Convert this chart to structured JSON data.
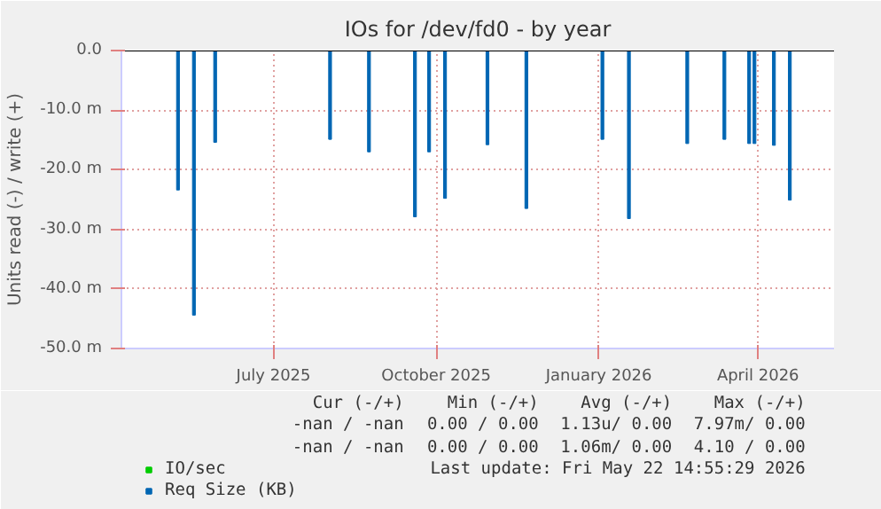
{
  "chart_data": {
    "type": "bar",
    "title": "IOs for /dev/fd0 - by year",
    "ylabel": "Units read (-) / write (+)",
    "x": [
      "2025-05-08",
      "2025-05-17",
      "2025-05-29",
      "2025-08-02",
      "2025-08-24",
      "2025-09-19",
      "2025-09-27",
      "2025-10-06",
      "2025-10-30",
      "2025-11-21",
      "2026-01-03",
      "2026-01-18",
      "2026-02-20",
      "2026-03-13",
      "2026-03-27",
      "2026-03-30",
      "2026-04-10",
      "2026-04-19"
    ],
    "series": [
      {
        "name": "IO/sec",
        "color": "#00cc00",
        "values": [
          null,
          null,
          null,
          null,
          null,
          null,
          null,
          null,
          null,
          null,
          null,
          null,
          null,
          null,
          null,
          null,
          null,
          null
        ]
      },
      {
        "name": "Req Size (KB)",
        "color": "#0066b3",
        "values": [
          -23.4,
          -44.4,
          -15.4,
          -14.9,
          -17.0,
          -27.9,
          -17.0,
          -24.8,
          -15.8,
          -26.5,
          -14.9,
          -28.2,
          -15.6,
          -14.9,
          -15.6,
          -15.6,
          -15.9,
          -25.1
        ]
      }
    ],
    "xlim": [
      "2025-04-06",
      "2026-05-14"
    ],
    "xticks": [
      {
        "value": "2025-07-01",
        "label": "July 2025"
      },
      {
        "value": "2025-10-01",
        "label": "October 2025"
      },
      {
        "value": "2026-01-01",
        "label": "January 2026"
      },
      {
        "value": "2026-04-01",
        "label": "April 2026"
      }
    ],
    "ylim": [
      -50,
      0
    ],
    "yticks": [
      {
        "value": -50,
        "label": "-50.0 m"
      },
      {
        "value": -40,
        "label": "-40.0 m"
      },
      {
        "value": -30,
        "label": "-30.0 m"
      },
      {
        "value": -20,
        "label": "-20.0 m"
      },
      {
        "value": -10,
        "label": "-10.0 m"
      },
      {
        "value": 0,
        "label": "0.0"
      }
    ],
    "grid": true,
    "legend": "bottom left",
    "annotations": [
      "Cur (-/+)",
      "Min (-/+)",
      "Avg (-/+)",
      "Max (-/+)",
      "-nan / -nan",
      "0.00 / 0.00",
      "1.13u/ 0.00",
      "7.97m/ 0.00",
      "-nan / -nan",
      "0.00 / 0.00",
      "1.06m/ 0.00",
      "4.10 / 0.00",
      "Last update: Fri May 22 14:55:29 2026"
    ]
  }
}
